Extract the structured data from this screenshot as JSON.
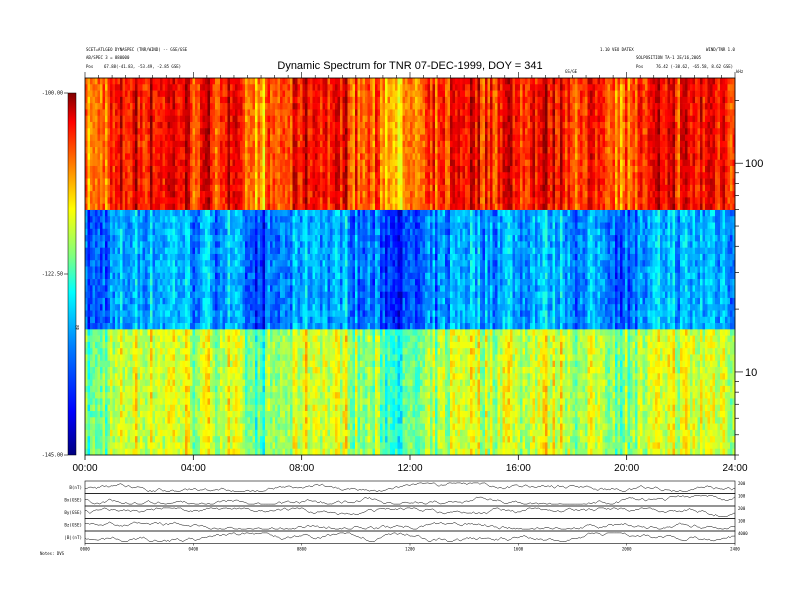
{
  "header": {
    "left_line1": "SCET=ATLGEO DYNASPEC (TNR/WIND) -- GSE/GSE",
    "left_line2": "AB/SPEC 3 = 880000",
    "left_line3_label": "Pos",
    "left_line3_value": "67.88(-41.83, -53.49, -2.85 GSE)",
    "right_line1": "1.10 VEO DATEX",
    "right_line2": "WIND/TNR 1.0",
    "right_line3": "SOLPOSITION  TA-1 2E/16,2005",
    "right_line4_label": "Pos",
    "right_line4_value": "76.42 (-38.62, -65.58, 8.62 GSE)",
    "mid_marker": "GS/GE",
    "corner_unit": "kHz"
  },
  "chart_data": {
    "type": "heatmap",
    "title": "Dynamic Spectrum for TNR 07-DEC-1999, DOY = 341",
    "x": {
      "ticks": [
        "00:00",
        "04:00",
        "08:00",
        "12:00",
        "16:00",
        "20:00",
        "24:00"
      ],
      "range_hours": [
        0,
        24
      ]
    },
    "y_frequency_khz": {
      "scale": "log",
      "ticks": [
        {
          "value": 100,
          "label": "100"
        },
        {
          "value": 10,
          "label": "10"
        }
      ],
      "range": [
        4,
        256
      ]
    },
    "colorbar": {
      "unit": "dB",
      "range": [
        -145,
        -100
      ],
      "ticks": [
        "-100.00",
        "-122.50",
        "-145.00"
      ],
      "palette": [
        "#7f0000",
        "#ff0000",
        "#ff7f00",
        "#ffff00",
        "#7fff7f",
        "#00ffff",
        "#007fff",
        "#0000ff",
        "#00007f"
      ]
    },
    "bands": [
      {
        "name": "upper",
        "freq_khz": [
          64,
          256
        ],
        "dominant": "red/yellow"
      },
      {
        "name": "middle",
        "freq_khz": [
          16,
          64
        ],
        "dominant": "blue"
      },
      {
        "name": "lower",
        "freq_khz": [
          4,
          16
        ],
        "dominant": "cyan/green"
      }
    ]
  },
  "panels": {
    "labels": [
      "B(nT)",
      "Bx(GSE)",
      "By(GSE)",
      "Bz(GSE)",
      "|B|(nT)"
    ],
    "right_values": [
      "200",
      "100",
      "200",
      "100",
      "4000"
    ],
    "x_ticks": [
      "0000",
      "0400",
      "0800",
      "1200",
      "1600",
      "2000",
      "2400"
    ],
    "footer": "Notes: DVS"
  }
}
